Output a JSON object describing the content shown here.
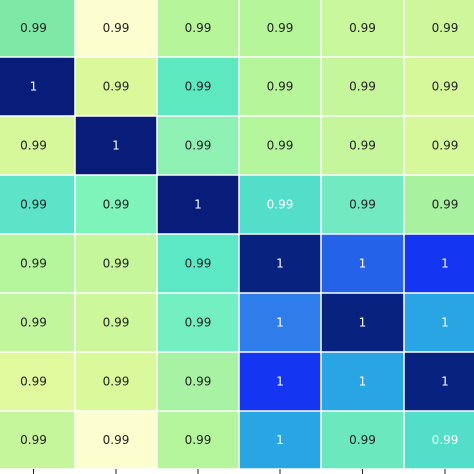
{
  "chart_data": {
    "type": "heatmap",
    "title": "",
    "xlabel": "",
    "ylabel": "",
    "rows": 8,
    "cols": 6,
    "values": [
      [
        0.99,
        0.99,
        0.99,
        0.99,
        0.99,
        0.99
      ],
      [
        1,
        0.99,
        0.99,
        0.99,
        0.99,
        0.99
      ],
      [
        0.99,
        1,
        0.99,
        0.99,
        0.99,
        0.99
      ],
      [
        0.99,
        0.99,
        1,
        0.99,
        0.99,
        0.99
      ],
      [
        0.99,
        0.99,
        0.99,
        1,
        1,
        1
      ],
      [
        0.99,
        0.99,
        0.99,
        1,
        1,
        1
      ],
      [
        0.99,
        0.99,
        0.99,
        1,
        1,
        1
      ],
      [
        0.99,
        0.99,
        0.99,
        1,
        0.99,
        0.99
      ]
    ],
    "labels": [
      [
        "0.99",
        "0.99",
        "0.99",
        "0.99",
        "0.99",
        "0.99"
      ],
      [
        "1",
        "0.99",
        "0.99",
        "0.99",
        "0.99",
        "0.99"
      ],
      [
        "0.99",
        "1",
        "0.99",
        "0.99",
        "0.99",
        "0.99"
      ],
      [
        "0.99",
        "0.99",
        "1",
        "0.99",
        "0.99",
        "0.99"
      ],
      [
        "0.99",
        "0.99",
        "0.99",
        "1",
        "1",
        "1"
      ],
      [
        "0.99",
        "0.99",
        "0.99",
        "1",
        "1",
        "1"
      ],
      [
        "0.99",
        "0.99",
        "0.99",
        "1",
        "1",
        "1"
      ],
      [
        "0.99",
        "0.99",
        "0.99",
        "1",
        "0.99",
        "0.99"
      ]
    ],
    "colors": [
      [
        "#7ee8a6",
        "#fbffd0",
        "#b7f59a",
        "#b7f59a",
        "#c9f79c",
        "#cef79b"
      ],
      [
        "#081d79",
        "#d9f99b",
        "#5de8bf",
        "#b7f59a",
        "#c6f69c",
        "#d6f89b"
      ],
      [
        "#d6f89b",
        "#081d79",
        "#8ef0b3",
        "#b5f59c",
        "#c6f69c",
        "#d6f89b"
      ],
      [
        "#5de3c7",
        "#7ef3ba",
        "#081d79",
        "#52dec8",
        "#73e9c1",
        "#a8f29f"
      ],
      [
        "#b5f59c",
        "#c6f69c",
        "#5de8c5",
        "#08237f",
        "#2462e8",
        "#1436f2"
      ],
      [
        "#c1f69c",
        "#cdf79b",
        "#74efc2",
        "#2f7deb",
        "#08237f",
        "#2aa5e3"
      ],
      [
        "#e0f99c",
        "#d9f99b",
        "#a8f2a4",
        "#1436f2",
        "#2aa5e3",
        "#08237f"
      ],
      [
        "#c6f69c",
        "#fbffd0",
        "#b5f59c",
        "#2aa5e3",
        "#6be8bd",
        "#52dec8"
      ]
    ],
    "text_colors": {
      "dark": "#222222",
      "light": "#ffffff"
    },
    "grid_line_color": "#ffffff",
    "tick_color": "#222222"
  }
}
